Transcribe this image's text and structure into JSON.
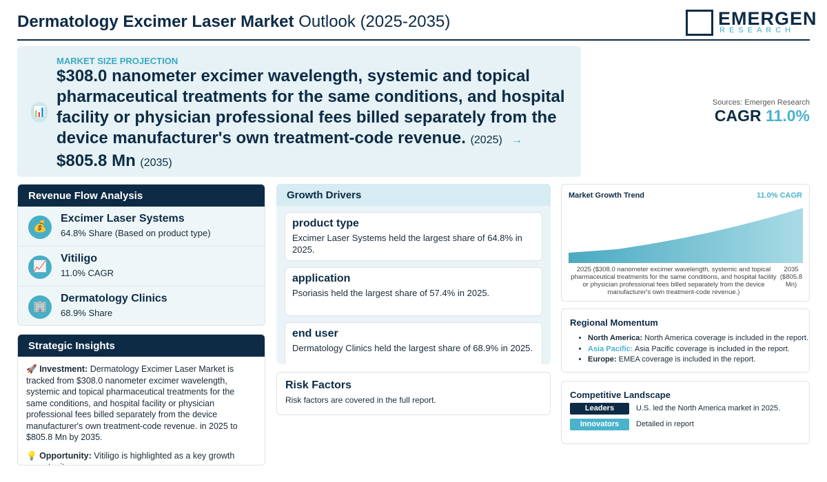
{
  "header": {
    "title_bold": "Dermatology Excimer Laser Market",
    "title_rest": "Outlook (2025-2035)",
    "logo_main": "EMERGEN",
    "logo_sub": "RESEARCH"
  },
  "hero": {
    "icon": "📊",
    "label": "MARKET SIZE PROJECTION",
    "start_value": "$308.0 nanometer excimer wavelength, systemic and topical pharmaceutical treatments for the same conditions, and hospital facility or physician professional fees billed separately from the device manufacturer's own treatment-code revenue.",
    "start_year": "(2025)",
    "arrow": "→",
    "end_value": "$805.8 Mn",
    "end_year": "(2035)"
  },
  "summary": {
    "source": "Sources: Emergen Research",
    "cagr_label": "CAGR",
    "cagr_value": "11.0%"
  },
  "revenue_flow": {
    "title": "Revenue Flow Analysis",
    "items": [
      {
        "icon": "💰",
        "name": "Excimer Laser Systems",
        "detail": "64.8% Share (Based on product type)"
      },
      {
        "icon": "📈",
        "name": "Vitiligo",
        "detail": "11.0% CAGR"
      },
      {
        "icon": "🏢",
        "name": "Dermatology Clinics",
        "detail": "68.9% Share"
      }
    ]
  },
  "strategic_insights": {
    "title": "Strategic Insights",
    "items": [
      {
        "icon": "🚀",
        "label": "Investment:",
        "text": "Dermatology Excimer Laser Market is tracked from $308.0 nanometer excimer wavelength, systemic and topical pharmaceutical treatments for the same conditions, and hospital facility or physician professional fees billed separately from the device manufacturer's own treatment-code revenue. in 2025 to $805.8 Mn by 2035."
      },
      {
        "icon": "💡",
        "label": "Opportunity:",
        "text": "Vitiligo is highlighted as a key growth opportunity."
      }
    ]
  },
  "growth_drivers": {
    "title": "Growth Drivers",
    "cards": [
      {
        "title": "product type",
        "text": "Excimer Laser Systems held the largest share of 64.8% in 2025."
      },
      {
        "title": "application",
        "text": "Psoriasis held the largest share of 57.4% in 2025."
      },
      {
        "title": "end user",
        "text": "Dermatology Clinics held the largest share of 68.9% in 2025."
      }
    ]
  },
  "risk_factors": {
    "title": "Risk Factors",
    "text": "Risk factors are covered in the full report."
  },
  "growth_trend": {
    "title": "Market Growth Trend",
    "cagr": "11.0% CAGR",
    "start_label": "2025 ($308.0 nanometer excimer wavelength, systemic and topical pharmaceutical treatments for the same conditions, and hospital facility or physician professional fees billed separately from the device manufacturer's own treatment-code revenue.)",
    "end_label": "2035 ($805.8 Mn)"
  },
  "regional_momentum": {
    "title": "Regional Momentum",
    "items": [
      {
        "region": "North America:",
        "text": "North America coverage is included in the report."
      },
      {
        "region": "Asia Pacific:",
        "text": "Asia Pacific coverage is included in the report."
      },
      {
        "region": "Europe:",
        "text": "EMEA coverage is included in the report."
      }
    ]
  },
  "competitive_landscape": {
    "title": "Competitive Landscape",
    "rows": [
      {
        "badge": "Leaders",
        "text": "U.S. led the North America market in 2025."
      },
      {
        "badge": "Innovators",
        "text": "Detailed in report"
      }
    ]
  }
}
